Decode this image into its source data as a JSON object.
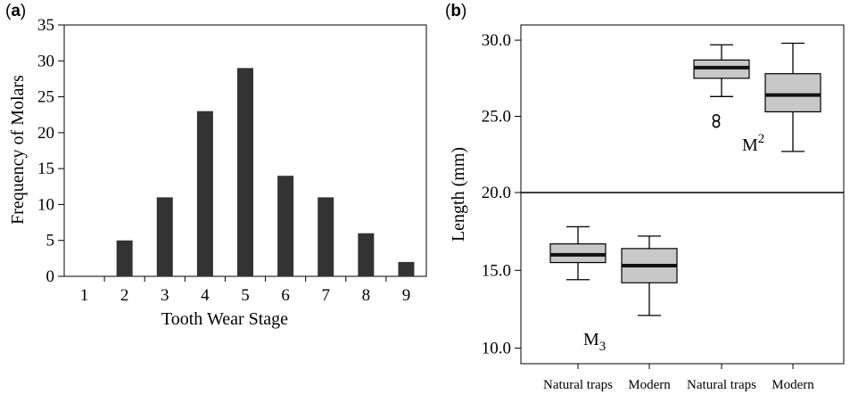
{
  "chart_data": [
    {
      "panel_label": "(a)",
      "panel_letter": "a",
      "type": "bar",
      "xlabel": "Tooth Wear Stage",
      "ylabel": "Frequency of Molars",
      "categories": [
        "1",
        "2",
        "3",
        "4",
        "5",
        "6",
        "7",
        "8",
        "9"
      ],
      "values": [
        0,
        5,
        11,
        23,
        29,
        14,
        11,
        6,
        2
      ],
      "ylim": [
        0,
        35
      ],
      "yticks": [
        "0",
        "5",
        "10",
        "15",
        "20",
        "25",
        "30",
        "35"
      ],
      "bar_color": "#333333",
      "grid": false
    },
    {
      "panel_label": "(b)",
      "panel_letter": "b",
      "type": "box",
      "ylabel": "Length (mm)",
      "categories": [
        "Natural traps",
        "Modern",
        "Natural traps",
        "Modern"
      ],
      "box_color": "#c8c8c8",
      "upper": {
        "ylim": [
          20.0,
          31.0
        ],
        "yticks": [
          "20.0",
          "25.0",
          "30.0"
        ],
        "annotation": {
          "base": "M",
          "sup": "2"
        },
        "boxes": [
          {
            "category_index": 0,
            "min": 26.3,
            "q1": 27.5,
            "median": 28.2,
            "q3": 28.7,
            "max": 29.7,
            "outliers": [
              24.9,
              24.5
            ]
          },
          {
            "category_index": 1,
            "min": 22.7,
            "q1": 25.3,
            "median": 26.4,
            "q3": 27.8,
            "max": 29.8,
            "outliers": []
          }
        ]
      },
      "lower": {
        "ylim": [
          9.0,
          20.0
        ],
        "yticks": [
          "10.0",
          "15.0"
        ],
        "annotation": {
          "base": "M",
          "sub": "3"
        },
        "boxes": [
          {
            "category_index": 0,
            "min": 14.4,
            "q1": 15.5,
            "median": 16.0,
            "q3": 16.7,
            "max": 17.8,
            "outliers": []
          },
          {
            "category_index": 1,
            "min": 12.1,
            "q1": 14.2,
            "median": 15.3,
            "q3": 16.4,
            "max": 17.2,
            "outliers": []
          }
        ]
      },
      "grid": false
    }
  ]
}
